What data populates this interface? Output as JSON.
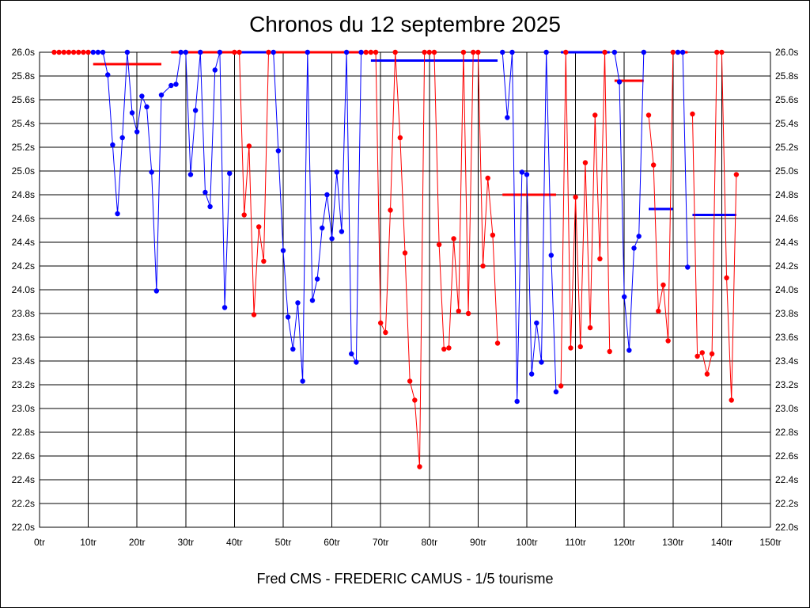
{
  "chart_data": {
    "type": "line",
    "title": "Chronos du 12 septembre 2025",
    "caption": "Fred CMS - FREDERIC CAMUS - 1/5 tourisme",
    "xlim": [
      0,
      150
    ],
    "ylim": [
      22.0,
      26.0
    ],
    "x_ticks": [
      0,
      10,
      20,
      30,
      40,
      50,
      60,
      70,
      80,
      90,
      100,
      110,
      120,
      130,
      140,
      150
    ],
    "x_tick_labels": [
      "0tr",
      "10tr",
      "20tr",
      "30tr",
      "40tr",
      "50tr",
      "60tr",
      "70tr",
      "80tr",
      "90tr",
      "100tr",
      "110tr",
      "120tr",
      "130tr",
      "140tr",
      "150tr"
    ],
    "y_ticks": [
      22.0,
      22.2,
      22.4,
      22.6,
      22.8,
      23.0,
      23.2,
      23.4,
      23.6,
      23.8,
      24.0,
      24.2,
      24.4,
      24.6,
      24.8,
      25.0,
      25.2,
      25.4,
      25.6,
      25.8,
      26.0
    ],
    "y_tick_labels": [
      "22.0s",
      "22.2s",
      "22.4s",
      "22.6s",
      "22.8s",
      "23.0s",
      "23.2s",
      "23.4s",
      "23.6s",
      "23.8s",
      "24.0s",
      "24.2s",
      "24.4s",
      "24.6s",
      "24.8s",
      "25.0s",
      "25.2s",
      "25.4s",
      "25.6s",
      "25.8s",
      "26.0s"
    ],
    "grid": true,
    "colors": {
      "series_a": "#ff0000",
      "series_b": "#0000ff",
      "grid": "#000000",
      "background": "#ffffff"
    },
    "series": [
      {
        "color": "#ff0000",
        "points": [
          [
            3,
            26.0
          ],
          [
            4,
            26.0
          ],
          [
            5,
            26.0
          ],
          [
            6,
            26.0
          ],
          [
            7,
            26.0
          ],
          [
            8,
            26.0
          ],
          [
            9,
            26.0
          ],
          [
            10,
            26.0
          ]
        ]
      },
      {
        "color": "#0000ff",
        "points": [
          [
            11,
            26.0
          ],
          [
            12,
            26.0
          ],
          [
            13,
            26.0
          ],
          [
            14,
            25.81
          ],
          [
            15,
            25.22
          ],
          [
            16,
            24.64
          ],
          [
            17,
            25.28
          ],
          [
            18,
            26.0
          ],
          [
            19,
            25.49
          ],
          [
            20,
            25.33
          ],
          [
            21,
            25.63
          ],
          [
            22,
            25.54
          ],
          [
            23,
            24.99
          ],
          [
            24,
            23.99
          ],
          [
            25,
            25.64
          ],
          [
            27,
            25.72
          ],
          [
            28,
            25.73
          ],
          [
            29,
            26.0
          ],
          [
            30,
            26.0
          ],
          [
            31,
            24.97
          ],
          [
            32,
            25.51
          ],
          [
            33,
            26.0
          ],
          [
            34,
            24.82
          ],
          [
            35,
            24.7
          ],
          [
            36,
            25.85
          ],
          [
            37,
            26.0
          ],
          [
            38,
            23.85
          ],
          [
            39,
            24.98
          ]
        ]
      },
      {
        "color": "#ff0000",
        "points": [
          [
            40,
            26.0
          ],
          [
            41,
            26.0
          ],
          [
            42,
            24.63
          ],
          [
            43,
            25.21
          ],
          [
            44,
            23.79
          ],
          [
            45,
            24.53
          ],
          [
            46,
            24.24
          ],
          [
            47,
            26.0
          ]
        ]
      },
      {
        "color": "#0000ff",
        "points": [
          [
            48,
            26.0
          ],
          [
            49,
            25.17
          ],
          [
            50,
            24.33
          ],
          [
            51,
            23.77
          ],
          [
            52,
            23.5
          ],
          [
            53,
            23.89
          ],
          [
            54,
            23.23
          ],
          [
            55,
            26.0
          ],
          [
            56,
            23.91
          ],
          [
            57,
            24.09
          ],
          [
            58,
            24.52
          ],
          [
            59,
            24.8
          ],
          [
            60,
            24.43
          ],
          [
            61,
            24.99
          ],
          [
            62,
            24.49
          ],
          [
            63,
            26.0
          ],
          [
            64,
            23.46
          ],
          [
            65,
            23.39
          ],
          [
            66,
            26.0
          ]
        ]
      },
      {
        "color": "#ff0000",
        "points": [
          [
            67,
            26.0
          ],
          [
            68,
            26.0
          ],
          [
            69,
            26.0
          ],
          [
            70,
            23.72
          ],
          [
            71,
            23.64
          ],
          [
            72,
            24.67
          ],
          [
            73,
            26.0
          ],
          [
            74,
            25.28
          ],
          [
            75,
            24.31
          ],
          [
            76,
            23.23
          ],
          [
            77,
            23.07
          ],
          [
            78,
            22.51
          ],
          [
            79,
            26.0
          ],
          [
            80,
            26.0
          ],
          [
            81,
            26.0
          ],
          [
            82,
            24.38
          ],
          [
            83,
            23.5
          ],
          [
            84,
            23.51
          ],
          [
            85,
            24.43
          ],
          [
            86,
            23.82
          ],
          [
            87,
            26.0
          ],
          [
            88,
            23.8
          ],
          [
            89,
            26.0
          ],
          [
            90,
            26.0
          ],
          [
            91,
            24.2
          ],
          [
            92,
            24.94
          ],
          [
            93,
            24.46
          ],
          [
            94,
            23.55
          ]
        ]
      },
      {
        "color": "#0000ff",
        "points": [
          [
            95,
            26.0
          ],
          [
            96,
            25.45
          ],
          [
            97,
            26.0
          ],
          [
            98,
            23.06
          ],
          [
            99,
            24.99
          ],
          [
            100,
            24.97
          ],
          [
            101,
            23.29
          ],
          [
            102,
            23.72
          ],
          [
            103,
            23.39
          ],
          [
            104,
            26.0
          ],
          [
            105,
            24.29
          ],
          [
            106,
            23.14
          ]
        ]
      },
      {
        "color": "#ff0000",
        "points": [
          [
            107,
            23.19
          ],
          [
            108,
            26.0
          ],
          [
            109,
            23.51
          ],
          [
            110,
            24.78
          ],
          [
            111,
            23.52
          ],
          [
            112,
            25.07
          ],
          [
            113,
            23.68
          ],
          [
            114,
            25.47
          ],
          [
            115,
            24.26
          ],
          [
            116,
            26.0
          ],
          [
            117,
            23.48
          ]
        ]
      },
      {
        "color": "#0000ff",
        "points": [
          [
            118,
            26.0
          ],
          [
            119,
            25.75
          ],
          [
            120,
            23.94
          ],
          [
            121,
            23.49
          ],
          [
            122,
            24.35
          ],
          [
            123,
            24.45
          ],
          [
            124,
            26.0
          ]
        ]
      },
      {
        "color": "#ff0000",
        "points": [
          [
            125,
            25.47
          ],
          [
            126,
            25.05
          ],
          [
            127,
            23.82
          ],
          [
            128,
            24.04
          ],
          [
            129,
            23.57
          ],
          [
            130,
            26.0
          ]
        ]
      },
      {
        "color": "#0000ff",
        "points": [
          [
            131,
            26.0
          ],
          [
            132,
            26.0
          ],
          [
            133,
            24.19
          ]
        ]
      },
      {
        "color": "#ff0000",
        "points": [
          [
            134,
            25.48
          ],
          [
            135,
            23.44
          ],
          [
            136,
            23.47
          ],
          [
            137,
            23.29
          ],
          [
            138,
            23.46
          ],
          [
            139,
            26.0
          ],
          [
            140,
            26.0
          ],
          [
            141,
            24.1
          ],
          [
            142,
            23.07
          ],
          [
            143,
            24.97
          ]
        ]
      }
    ],
    "average_segments": [
      {
        "color": "#ff0000",
        "x": [
          11,
          25
        ],
        "y": 25.9
      },
      {
        "color": "#ff0000",
        "x": [
          27,
          40
        ],
        "y": 26.0
      },
      {
        "color": "#0000ff",
        "x": [
          40,
          48
        ],
        "y": 26.0
      },
      {
        "color": "#ff0000",
        "x": [
          48,
          67
        ],
        "y": 26.0
      },
      {
        "color": "#0000ff",
        "x": [
          68,
          94
        ],
        "y": 25.93
      },
      {
        "color": "#ff0000",
        "x": [
          95,
          106
        ],
        "y": 24.8
      },
      {
        "color": "#0000ff",
        "x": [
          107,
          117
        ],
        "y": 26.0
      },
      {
        "color": "#ff0000",
        "x": [
          118,
          124
        ],
        "y": 25.76
      },
      {
        "color": "#0000ff",
        "x": [
          125,
          130
        ],
        "y": 24.68
      },
      {
        "color": "#ff0000",
        "x": [
          131,
          133
        ],
        "y": 26.0
      },
      {
        "color": "#0000ff",
        "x": [
          134,
          143
        ],
        "y": 24.63
      }
    ]
  }
}
